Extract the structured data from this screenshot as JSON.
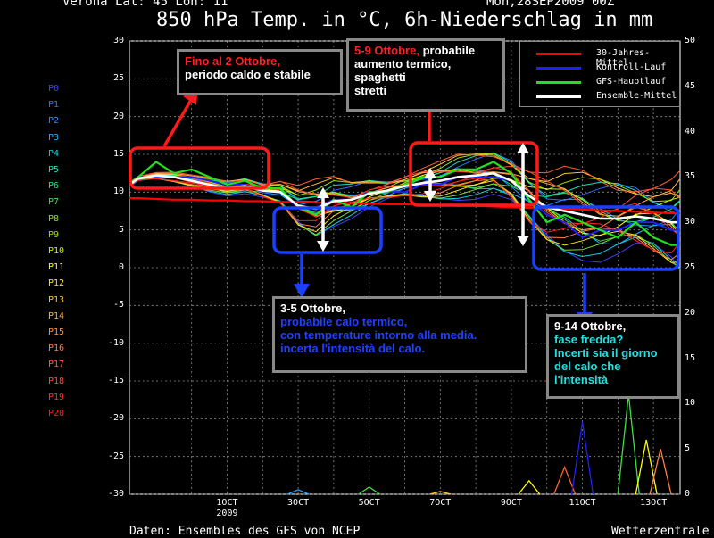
{
  "header": {
    "location": "Verona   Lat: 45 Lon: 11",
    "run": "Mon,28SEP2009 00Z"
  },
  "footer": {
    "source": "Daten: Ensembles des GFS von NCEP",
    "brand": "Wetterzentrale"
  },
  "members": [
    {
      "label": "P0",
      "color": "#4040ff"
    },
    {
      "label": "P1",
      "color": "#3070ff"
    },
    {
      "label": "P2",
      "color": "#2090ff"
    },
    {
      "label": "P3",
      "color": "#20b0ff"
    },
    {
      "label": "P4",
      "color": "#10d0e0"
    },
    {
      "label": "P5",
      "color": "#10e0c0"
    },
    {
      "label": "P6",
      "color": "#20e080"
    },
    {
      "label": "P7",
      "color": "#40e040"
    },
    {
      "label": "P8",
      "color": "#80e020"
    },
    {
      "label": "P9",
      "color": "#a0e000"
    },
    {
      "label": "P10",
      "color": "#d0f000"
    },
    {
      "label": "P11",
      "color": "#ffff00"
    },
    {
      "label": "P12",
      "color": "#ffe020"
    },
    {
      "label": "P13",
      "color": "#ffc040"
    },
    {
      "label": "P14",
      "color": "#ffb040"
    },
    {
      "label": "P15",
      "color": "#ff9040"
    },
    {
      "label": "P16",
      "color": "#ff8040"
    },
    {
      "label": "P17",
      "color": "#ff6030"
    },
    {
      "label": "P18",
      "color": "#ff5030"
    },
    {
      "label": "P19",
      "color": "#ff3020"
    },
    {
      "label": "P20",
      "color": "#ff2020"
    }
  ],
  "annotations": [
    {
      "line1": "Fino al 2 Ottobre,",
      "line1_color": "#ff2020",
      "line2": "periodo caldo e stabile",
      "line2_color": "#ffffff"
    },
    {
      "line1": "5-9 Ottobre,",
      "line1_color": "#ff2020",
      "line1b": " probabile",
      "line2": "aumento termico,",
      "line3": "spaghetti",
      "line4": "stretti"
    },
    {
      "line1": "3-5 Ottobre,",
      "line2": "probabile calo termico,",
      "line3": "con temperature intorno alla media.",
      "line4": "incerta l'intensità del calo.",
      "body_color": "#2040ff"
    },
    {
      "line1": "9-14 Ottobre,",
      "line2": "fase fredda?",
      "line3": "Incerti sia il giorno",
      "line4": "del calo che",
      "line5": "l'intensità",
      "body_color": "#20e0e0"
    }
  ],
  "chart_data": {
    "type": "line",
    "title": "850 hPa Temp. in °C, 6h-Niederschlag in mm",
    "ylim": [
      -30,
      30
    ],
    "y2lim": [
      0,
      50
    ],
    "ytick_labels": [
      "30",
      "25",
      "20",
      "15",
      "10",
      "5",
      "0",
      "-5",
      "-10",
      "-15",
      "-20",
      "-25",
      "-30"
    ],
    "y2tick_labels": [
      "50",
      "45",
      "40",
      "35",
      "30",
      "25",
      "20",
      "15",
      "10",
      "5",
      "0"
    ],
    "xtick_labels": [
      "1OCT\n2009",
      "3OCT",
      "5OCT",
      "7OCT",
      "9OCT",
      "11OCT",
      "13OCT"
    ],
    "xtick_days": [
      1,
      3,
      5,
      7,
      9,
      11,
      13
    ],
    "xlim_days": [
      -1.75,
      13.75
    ],
    "grid": true,
    "legend_position": "top-right",
    "legend": [
      {
        "name": "30-Jahres-Mittel",
        "color": "#ff0000"
      },
      {
        "name": "Kontroll-Lauf",
        "color": "#2020ff"
      },
      {
        "name": "GFS-Hauptlauf",
        "color": "#20e020"
      },
      {
        "name": "Ensemble-Mittel",
        "color": "#ffffff"
      }
    ],
    "days": [
      -1.75,
      -1.5,
      -1,
      -0.5,
      0,
      0.5,
      1,
      1.5,
      2,
      2.5,
      3,
      3.5,
      4,
      4.5,
      5,
      5.5,
      6,
      6.5,
      7,
      7.5,
      8,
      8.5,
      9,
      9.5,
      10,
      10.5,
      11,
      11.5,
      12,
      12.5,
      13,
      13.5,
      13.75
    ],
    "climatology": [
      9.2,
      9.2,
      9.1,
      9.0,
      9.0,
      8.9,
      8.9,
      8.8,
      8.8,
      8.7,
      8.7,
      8.6,
      8.6,
      8.5,
      8.5,
      8.4,
      8.4,
      8.3,
      8.3,
      8.2,
      8.2,
      8.1,
      8.0,
      7.9,
      7.9,
      7.8,
      7.7,
      7.6,
      7.5,
      7.4,
      7.3,
      7.2,
      7.2
    ],
    "gfs_main": [
      11,
      12,
      14,
      12.5,
      13,
      12,
      11,
      11.5,
      10.5,
      10.5,
      8,
      7,
      9,
      8,
      10,
      10,
      11,
      12,
      12,
      13,
      13,
      14,
      12.5,
      9,
      6,
      7,
      6,
      5,
      4,
      6,
      4,
      3,
      3
    ],
    "control": [
      11,
      12,
      12,
      12,
      12,
      11.5,
      11,
      11,
      10,
      10,
      8,
      8,
      9,
      9,
      10,
      10,
      10,
      11,
      11,
      12,
      12,
      12,
      11.5,
      9,
      7,
      6,
      4,
      5,
      5,
      6,
      6,
      5,
      5
    ],
    "ensemble_mean": [
      11,
      11.8,
      12.2,
      12,
      11.5,
      11,
      10.5,
      10.8,
      10.2,
      10,
      8.2,
      7.8,
      8.8,
      9,
      9.8,
      10.2,
      10.8,
      11.2,
      11.5,
      12,
      12.2,
      12.5,
      11.5,
      9.5,
      8,
      7.5,
      7,
      6.5,
      6.5,
      6.8,
      6.5,
      6,
      6
    ],
    "ensemble_spread": [
      0.3,
      0.4,
      0.5,
      0.6,
      0.6,
      0.7,
      0.8,
      1,
      1.2,
      1.8,
      2.5,
      3,
      2.5,
      2,
      1.8,
      1.5,
      1.5,
      1.8,
      2,
      2.3,
      2.5,
      2.8,
      3.5,
      4,
      4.2,
      4.5,
      4.5,
      4.6,
      4.8,
      5,
      5,
      5.2,
      5.2
    ],
    "precip_member_peaks_mm": [
      0.5,
      0.8,
      0.3,
      1.5,
      3,
      8,
      11,
      6,
      5
    ],
    "precip_peak_days": [
      3,
      5,
      7,
      9.5,
      10.5,
      11,
      12.3,
      12.8,
      13.2
    ]
  }
}
